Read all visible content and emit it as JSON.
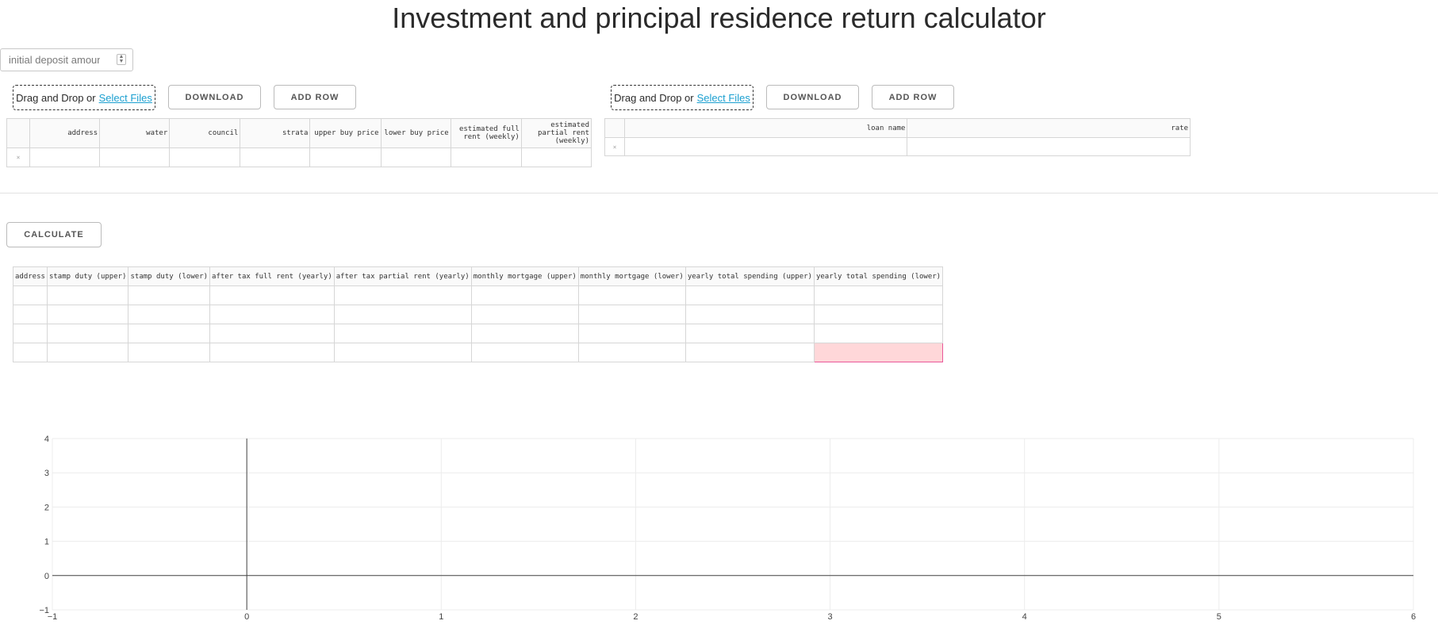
{
  "title": "Investment and principal residence return calculator",
  "deposit": {
    "placeholder": "initial deposit amount"
  },
  "left_panel": {
    "upload_text": "Drag and Drop or ",
    "upload_link": "Select Files",
    "download_label": "DOWNLOAD",
    "add_row_label": "ADD ROW",
    "table": {
      "columns": [
        "address",
        "water",
        "council",
        "strata",
        "upper buy price",
        "lower buy price",
        "estimated full rent (weekly)",
        "estimated partial rent (weekly)"
      ],
      "delete_glyph": "×"
    }
  },
  "right_panel": {
    "upload_text": "Drag and Drop or ",
    "upload_link": "Select Files",
    "download_label": "DOWNLOAD",
    "add_row_label": "ADD ROW",
    "table": {
      "columns": [
        "loan name",
        "rate"
      ],
      "delete_glyph": "×"
    }
  },
  "calculate_label": "CALCULATE",
  "results": {
    "columns": [
      "address",
      "stamp duty (upper)",
      "stamp duty (lower)",
      "after tax full rent (yearly)",
      "after tax partial rent (yearly)",
      "monthly mortgage (upper)",
      "monthly mortgage (lower)",
      "yearly total spending (upper)",
      "yearly total spending (lower)"
    ],
    "row_count": 4
  },
  "chart_data": {
    "type": "scatter",
    "series": [],
    "xlim": [
      -1,
      6
    ],
    "ylim": [
      -1,
      4
    ],
    "x_ticks": [
      "−1",
      "0",
      "1",
      "2",
      "3",
      "4",
      "5",
      "6"
    ],
    "y_ticks": [
      "−1",
      "0",
      "1",
      "2",
      "3",
      "4"
    ],
    "grid": true,
    "title": "",
    "xlabel": "",
    "ylabel": ""
  },
  "colors": {
    "link": "#1a9fd0",
    "active_cell_bg": "#ffd7d9",
    "active_cell_border": "#e9589a"
  }
}
